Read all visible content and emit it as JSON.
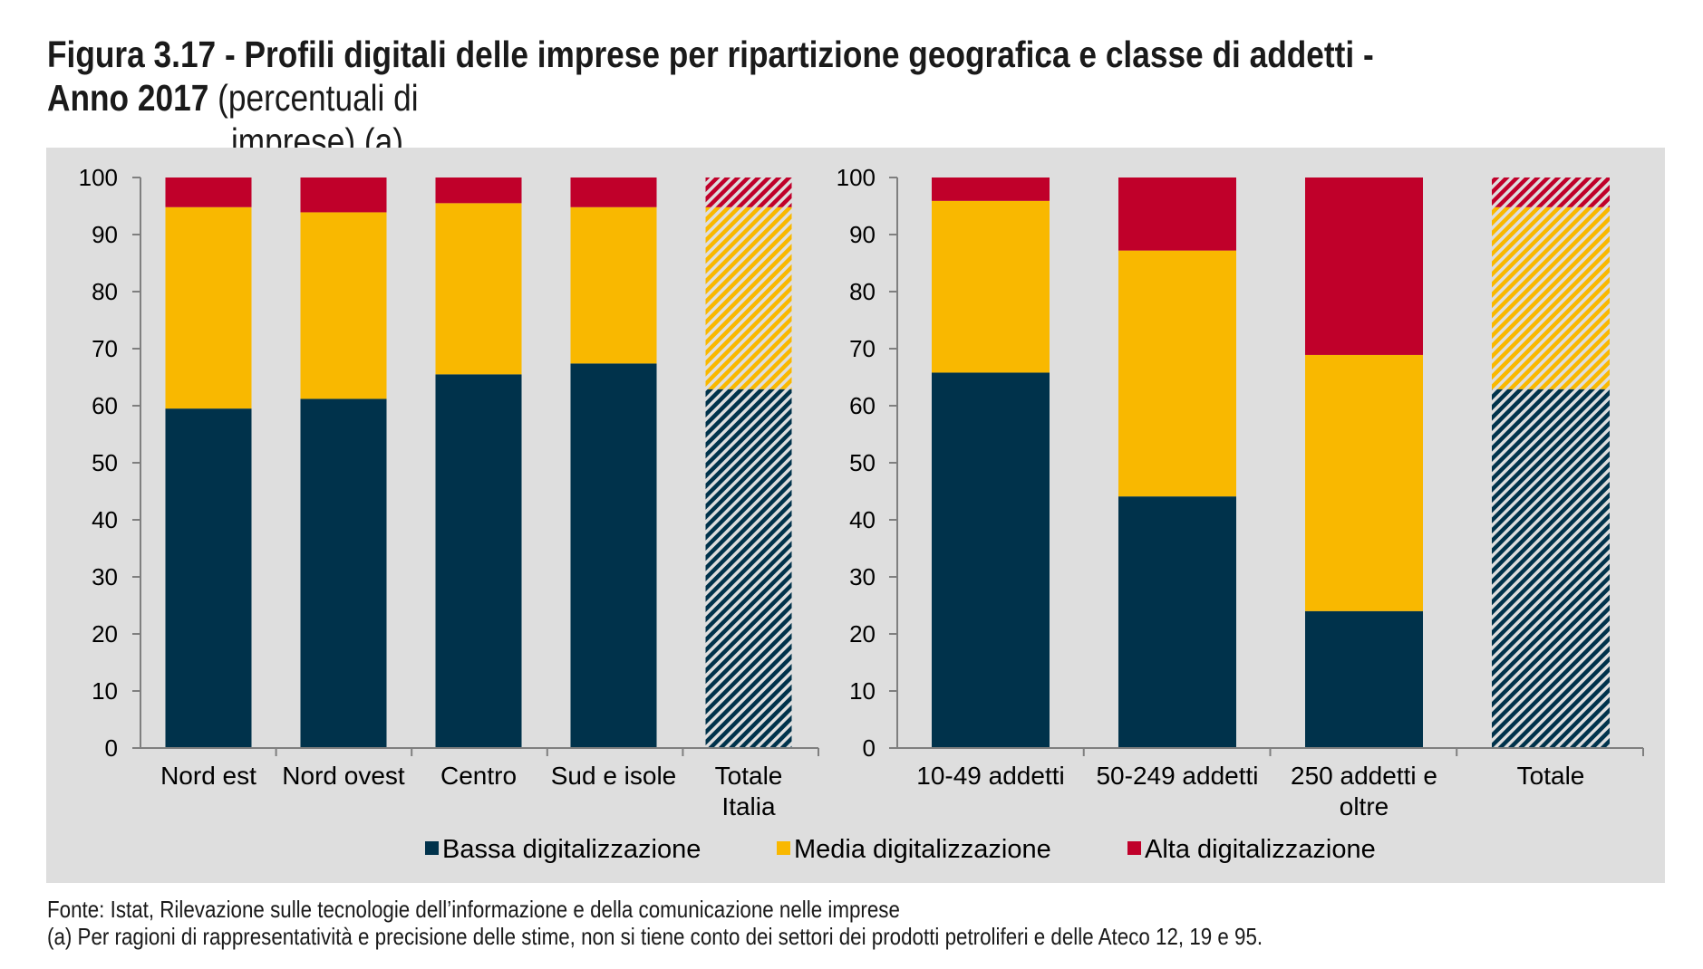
{
  "figure": {
    "title_bold": "Figura 3.17 - Profili digitali delle imprese per ripartizione geografica e classe di addetti - Anno 2017",
    "title_rest_line1": " (percentuali di",
    "title_rest_line2": "imprese) (a)"
  },
  "chart_data": [
    {
      "type": "bar",
      "stacked": true,
      "categories": [
        "Nord est",
        "Nord ovest",
        "Centro",
        "Sud e isole",
        "Totale Italia"
      ],
      "series": [
        {
          "name": "Bassa digitalizzazione",
          "values": [
            59.5,
            61.2,
            65.5,
            67.4,
            62.9
          ]
        },
        {
          "name": "Media digitalizzazione",
          "values": [
            35.3,
            32.7,
            30.0,
            27.4,
            31.9
          ]
        },
        {
          "name": "Alta digitalizzazione",
          "values": [
            5.2,
            6.1,
            4.5,
            5.2,
            5.2
          ]
        }
      ],
      "hatched_categories": [
        "Totale Italia"
      ],
      "ylim": [
        0,
        100
      ],
      "yticks": [
        0,
        10,
        20,
        30,
        40,
        50,
        60,
        70,
        80,
        90,
        100
      ]
    },
    {
      "type": "bar",
      "stacked": true,
      "categories": [
        "10-49 addetti",
        "50-249 addetti",
        "250 addetti e oltre",
        "Totale"
      ],
      "series": [
        {
          "name": "Bassa digitalizzazione",
          "values": [
            65.8,
            44.1,
            24.0,
            62.9
          ]
        },
        {
          "name": "Media digitalizzazione",
          "values": [
            30.1,
            43.1,
            44.9,
            31.9
          ]
        },
        {
          "name": "Alta digitalizzazione",
          "values": [
            4.1,
            12.8,
            31.1,
            5.2
          ]
        }
      ],
      "hatched_categories": [
        "Totale"
      ],
      "ylim": [
        0,
        100
      ],
      "yticks": [
        0,
        10,
        20,
        30,
        40,
        50,
        60,
        70,
        80,
        90,
        100
      ]
    }
  ],
  "colors": {
    "Bassa digitalizzazione": "#00324b",
    "Media digitalizzazione": "#f9b800",
    "Alta digitalizzazione": "#c0002a",
    "panel_background": "#dedede"
  },
  "legend": [
    {
      "label": "Bassa digitalizzazione",
      "color": "#00324b"
    },
    {
      "label": "Media digitalizzazione",
      "color": "#f9b800"
    },
    {
      "label": "Alta digitalizzazione",
      "color": "#c0002a"
    }
  ],
  "footnotes": {
    "source": "Fonte: Istat, Rilevazione sulle tecnologie dell’informazione e della comunicazione nelle imprese",
    "note_a": "(a) Per ragioni di rappresentatività e precisione delle stime, non si tiene conto dei settori dei prodotti petroliferi e delle Ateco 12, 19 e 95."
  }
}
